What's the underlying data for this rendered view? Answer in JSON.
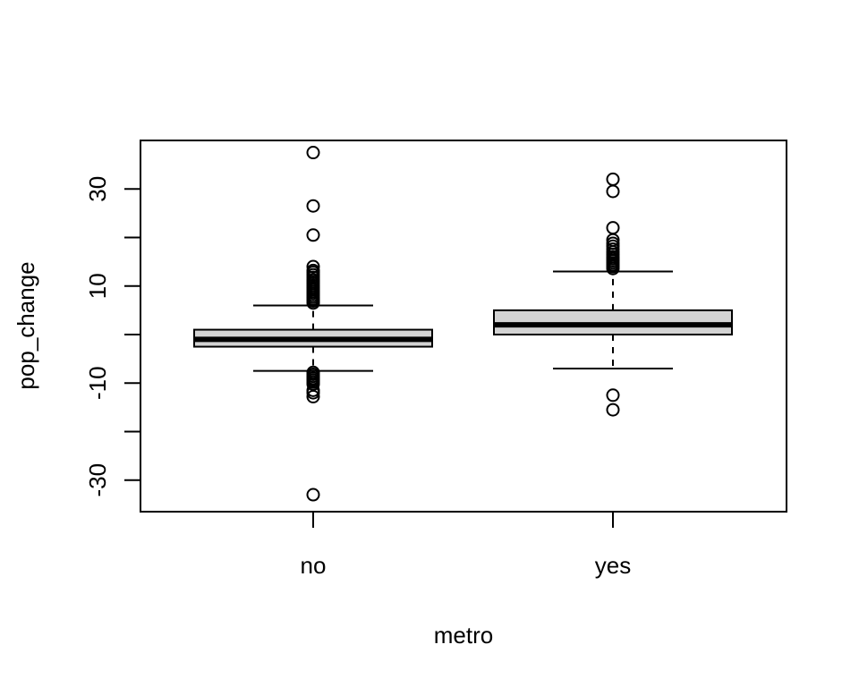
{
  "chart_data": {
    "type": "boxplot",
    "xlabel": "metro",
    "ylabel": "pop_change",
    "categories": [
      "no",
      "yes"
    ],
    "ylim": [
      -36.5,
      40.0
    ],
    "yticks": [
      -30,
      -20,
      -10,
      0,
      10,
      20,
      30
    ],
    "ytick_labels_shown": [
      "-30",
      "-10",
      "10",
      "30"
    ],
    "box_fill": "#d3d3d3",
    "grid": false,
    "boxes": [
      {
        "category": "no",
        "whisker_low": -7.5,
        "q1": -2.5,
        "median": -1.0,
        "q3": 1.0,
        "whisker_high": 6.0,
        "outliers": [
          37.5,
          26.5,
          20.5,
          14.0,
          13.2,
          12.8,
          12.3,
          11.8,
          11.3,
          10.9,
          10.5,
          10.1,
          9.7,
          9.3,
          8.9,
          8.5,
          8.1,
          7.7,
          7.3,
          6.9,
          6.5,
          -7.8,
          -8.2,
          -8.6,
          -9.0,
          -9.4,
          -9.8,
          -10.2,
          -11.5,
          -12.0,
          -12.8,
          -33.0
        ]
      },
      {
        "category": "yes",
        "whisker_low": -7.0,
        "q1": 0.0,
        "median": 2.0,
        "q3": 5.0,
        "whisker_high": 13.0,
        "outliers": [
          32.0,
          29.5,
          22.0,
          19.5,
          18.8,
          18.2,
          17.6,
          17.0,
          16.5,
          16.0,
          15.6,
          15.2,
          14.8,
          14.4,
          14.0,
          13.6,
          -12.5,
          -15.5
        ]
      }
    ]
  }
}
